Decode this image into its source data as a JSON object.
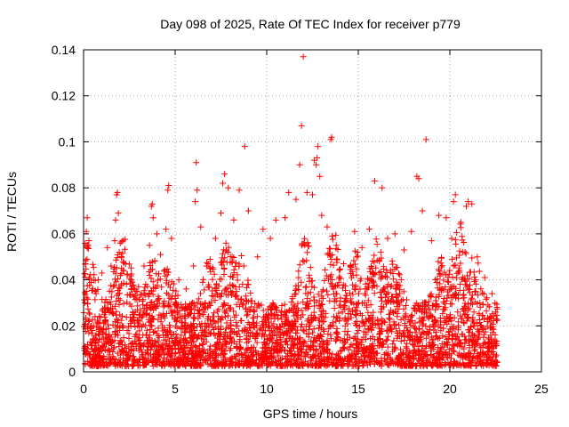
{
  "chart_data": {
    "type": "scatter",
    "title": "Day 098 of 2025, Rate Of TEC Index for receiver p779",
    "xlabel": "GPS time / hours",
    "ylabel": "ROTI / TECUs",
    "xlim": [
      0,
      25
    ],
    "ylim": [
      0,
      0.14
    ],
    "x_ticks": [
      0,
      5,
      10,
      15,
      20,
      25
    ],
    "x_tick_labels": [
      "0",
      "5",
      "10",
      "15",
      "20",
      "25"
    ],
    "y_ticks": [
      0,
      0.02,
      0.04,
      0.06,
      0.08,
      0.1,
      0.12,
      0.14
    ],
    "y_tick_labels": [
      "0",
      "0.02",
      "0.04",
      "0.06",
      "0.08",
      "0.1",
      "0.12",
      "0.14"
    ],
    "grid": true,
    "marker": "+",
    "color": "#ff0000",
    "data_coverage_hours": [
      0,
      22.6
    ],
    "dense_band": [
      0.005,
      0.03
    ],
    "series": [
      {
        "name": "ROTI",
        "points": [
          [
            0.1,
            0.047
          ],
          [
            0.15,
            0.061
          ],
          [
            0.2,
            0.067
          ],
          [
            0.25,
            0.055
          ],
          [
            0.3,
            0.041
          ],
          [
            0.5,
            0.036
          ],
          [
            0.8,
            0.04
          ],
          [
            1.0,
            0.043
          ],
          [
            1.3,
            0.054
          ],
          [
            1.5,
            0.046
          ],
          [
            1.7,
            0.057
          ],
          [
            1.75,
            0.066
          ],
          [
            1.8,
            0.077
          ],
          [
            1.85,
            0.078
          ],
          [
            1.9,
            0.069
          ],
          [
            2.0,
            0.056
          ],
          [
            2.3,
            0.047
          ],
          [
            2.6,
            0.04
          ],
          [
            3.0,
            0.037
          ],
          [
            3.3,
            0.046
          ],
          [
            3.6,
            0.055
          ],
          [
            3.7,
            0.072
          ],
          [
            3.75,
            0.073
          ],
          [
            3.8,
            0.067
          ],
          [
            4.0,
            0.06
          ],
          [
            4.2,
            0.051
          ],
          [
            4.5,
            0.062
          ],
          [
            4.6,
            0.079
          ],
          [
            4.65,
            0.081
          ],
          [
            4.8,
            0.058
          ],
          [
            5.2,
            0.04
          ],
          [
            5.6,
            0.036
          ],
          [
            6.0,
            0.046
          ],
          [
            6.1,
            0.074
          ],
          [
            6.15,
            0.091
          ],
          [
            6.2,
            0.079
          ],
          [
            6.4,
            0.063
          ],
          [
            6.8,
            0.047
          ],
          [
            7.2,
            0.058
          ],
          [
            7.5,
            0.069
          ],
          [
            7.6,
            0.082
          ],
          [
            7.7,
            0.086
          ],
          [
            7.9,
            0.08
          ],
          [
            8.2,
            0.066
          ],
          [
            8.5,
            0.079
          ],
          [
            8.8,
            0.098
          ],
          [
            9.0,
            0.07
          ],
          [
            9.5,
            0.05
          ],
          [
            9.8,
            0.062
          ],
          [
            10.2,
            0.058
          ],
          [
            10.5,
            0.066
          ],
          [
            11.0,
            0.067
          ],
          [
            11.2,
            0.078
          ],
          [
            11.6,
            0.075
          ],
          [
            11.8,
            0.09
          ],
          [
            11.9,
            0.107
          ],
          [
            12.0,
            0.137
          ],
          [
            12.2,
            0.078
          ],
          [
            12.5,
            0.077
          ],
          [
            12.6,
            0.092
          ],
          [
            12.7,
            0.09
          ],
          [
            12.75,
            0.093
          ],
          [
            12.8,
            0.098
          ],
          [
            12.9,
            0.085
          ],
          [
            13.0,
            0.068
          ],
          [
            13.3,
            0.063
          ],
          [
            13.5,
            0.101
          ],
          [
            13.55,
            0.102
          ],
          [
            13.8,
            0.055
          ],
          [
            14.2,
            0.047
          ],
          [
            14.8,
            0.061
          ],
          [
            15.2,
            0.054
          ],
          [
            15.6,
            0.062
          ],
          [
            15.9,
            0.083
          ],
          [
            16.3,
            0.08
          ],
          [
            16.6,
            0.058
          ],
          [
            17.0,
            0.06
          ],
          [
            17.5,
            0.053
          ],
          [
            17.9,
            0.061
          ],
          [
            18.2,
            0.085
          ],
          [
            18.3,
            0.084
          ],
          [
            18.5,
            0.07
          ],
          [
            18.7,
            0.101
          ],
          [
            19.0,
            0.057
          ],
          [
            19.4,
            0.068
          ],
          [
            19.8,
            0.067
          ],
          [
            20.1,
            0.058
          ],
          [
            20.2,
            0.074
          ],
          [
            20.3,
            0.077
          ],
          [
            20.6,
            0.065
          ],
          [
            20.9,
            0.072
          ],
          [
            21.0,
            0.074
          ],
          [
            21.2,
            0.073
          ],
          [
            21.5,
            0.05
          ],
          [
            21.9,
            0.041
          ],
          [
            22.3,
            0.034
          ],
          [
            22.5,
            0.026
          ]
        ]
      }
    ]
  }
}
